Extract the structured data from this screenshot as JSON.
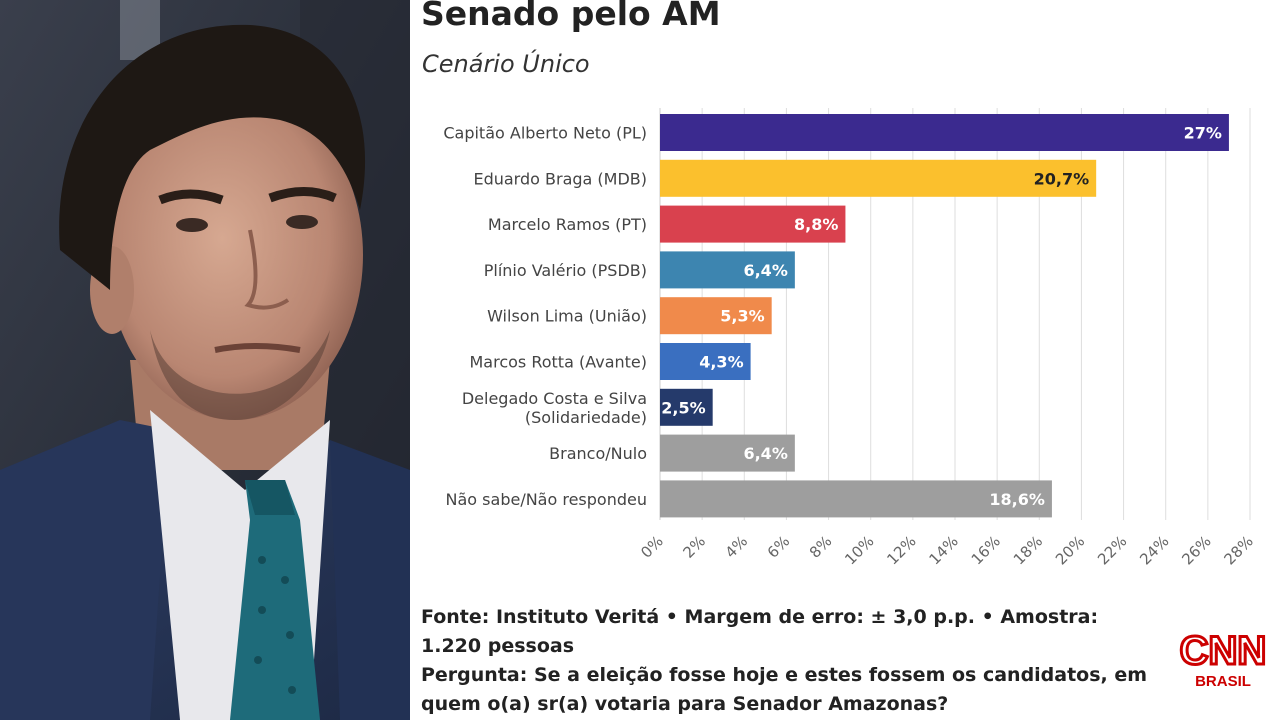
{
  "title": "Senado pelo AM",
  "subtitle": "Cenário Único",
  "footer": {
    "source": "Fonte: Instituto Veritá • Margem de erro: ± 3,0 p.p. • Amostra: 1.220 pessoas",
    "question": "Pergunta: Se a eleição fosse hoje e estes fossem os candidatos, em quem o(a) sr(a) votaria para Senador Amazonas?"
  },
  "logo": {
    "brand": "CNN",
    "sub": "BRASIL",
    "color": "#cc0000"
  },
  "chart_data": {
    "type": "bar",
    "orientation": "horizontal",
    "categories": [
      "Capitão Alberto Neto (PL)",
      "Eduardo Braga (MDB)",
      "Marcelo Ramos (PT)",
      "Plínio Valério (PSDB)",
      "Wilson Lima (União)",
      "Marcos Rotta (Avante)",
      "Delegado Costa e Silva (Solidariedade)",
      "Branco/Nulo",
      "Não sabe/Não respondeu"
    ],
    "category_lines": [
      [
        "Capitão Alberto Neto (PL)"
      ],
      [
        "Eduardo Braga (MDB)"
      ],
      [
        "Marcelo Ramos (PT)"
      ],
      [
        "Plínio Valério (PSDB)"
      ],
      [
        "Wilson Lima (União)"
      ],
      [
        "Marcos Rotta (Avante)"
      ],
      [
        "Delegado Costa e Silva",
        "(Solidariedade)"
      ],
      [
        "Branco/Nulo"
      ],
      [
        "Não sabe/Não respondeu"
      ]
    ],
    "values": [
      27,
      20.7,
      8.8,
      6.4,
      5.3,
      4.3,
      2.5,
      6.4,
      18.6
    ],
    "value_labels": [
      "27%",
      "20,7%",
      "8,8%",
      "6,4%",
      "5,3%",
      "4,3%",
      "2,5%",
      "6,4%",
      "18,6%"
    ],
    "colors": [
      "#3b2a8f",
      "#fbc02d",
      "#d9414e",
      "#3d85b0",
      "#f08a4b",
      "#3a6fc0",
      "#253a6b",
      "#9e9e9e",
      "#9e9e9e"
    ],
    "label_colors": [
      "#ffffff",
      "#222222",
      "#ffffff",
      "#ffffff",
      "#ffffff",
      "#ffffff",
      "#ffffff",
      "#ffffff",
      "#ffffff"
    ],
    "xlim": [
      0,
      28
    ],
    "xticks": [
      0,
      2,
      4,
      6,
      8,
      10,
      12,
      14,
      16,
      18,
      20,
      22,
      24,
      26,
      28
    ],
    "xtick_labels": [
      "0%",
      "2%",
      "4%",
      "6%",
      "8%",
      "10%",
      "12%",
      "14%",
      "16%",
      "18%",
      "20%",
      "22%",
      "24%",
      "26%",
      "28%"
    ],
    "grid": true,
    "title": "Senado pelo AM",
    "subtitle": "Cenário Único"
  }
}
